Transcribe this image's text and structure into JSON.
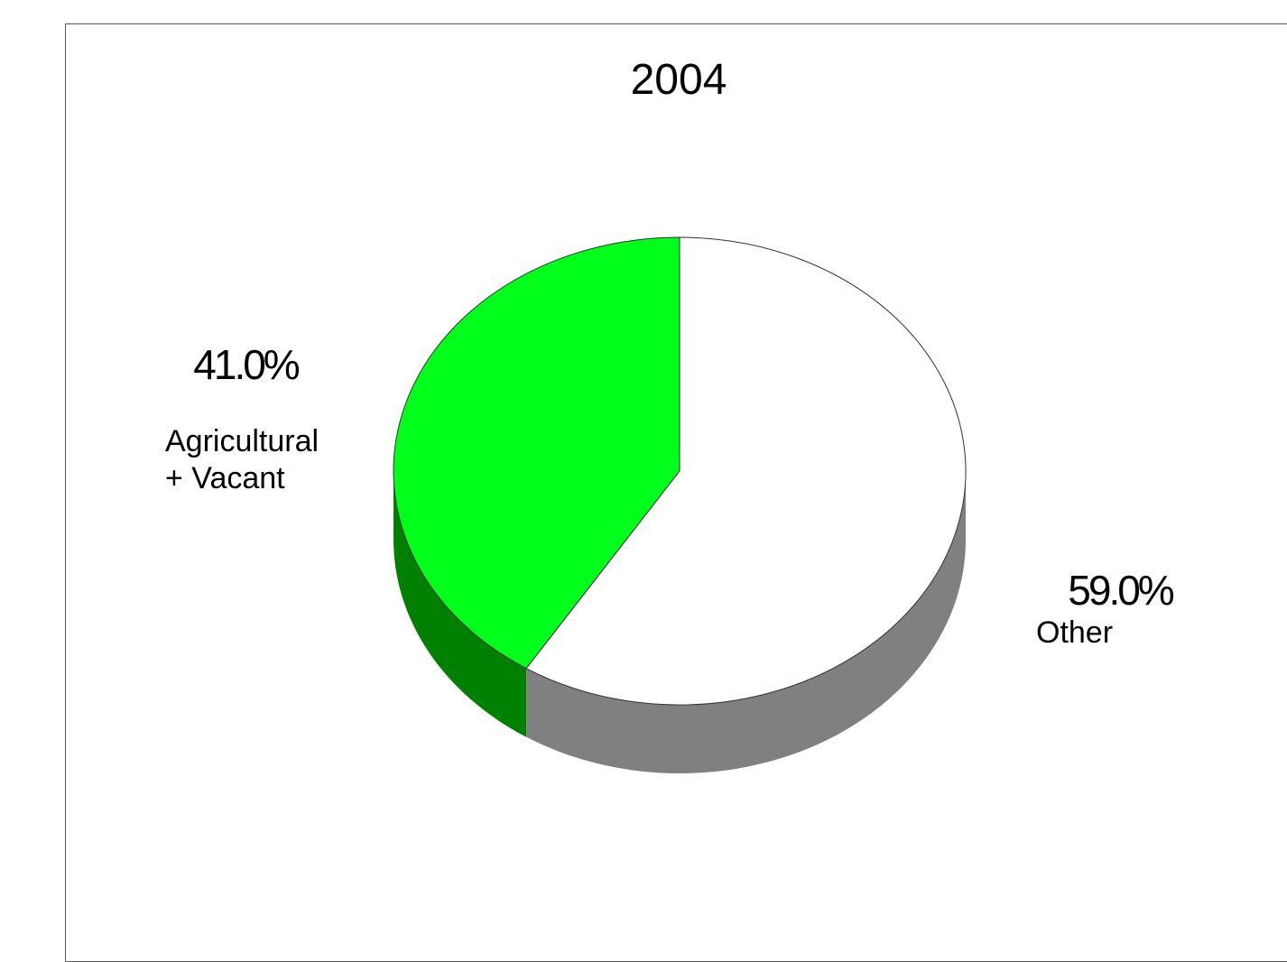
{
  "chart_data": {
    "type": "pie",
    "title": "2004",
    "style": "3d",
    "slices": [
      {
        "label_lines": [
          "Agricultural",
          "+ Vacant"
        ],
        "value": 41.0,
        "value_label": "41.0%",
        "color": "#00ff1a",
        "side_color": "#008000"
      },
      {
        "label_lines": [
          "Other"
        ],
        "value": 59.0,
        "value_label": "59.0%",
        "color": "#ffffff",
        "side_color": "#808080"
      }
    ]
  }
}
